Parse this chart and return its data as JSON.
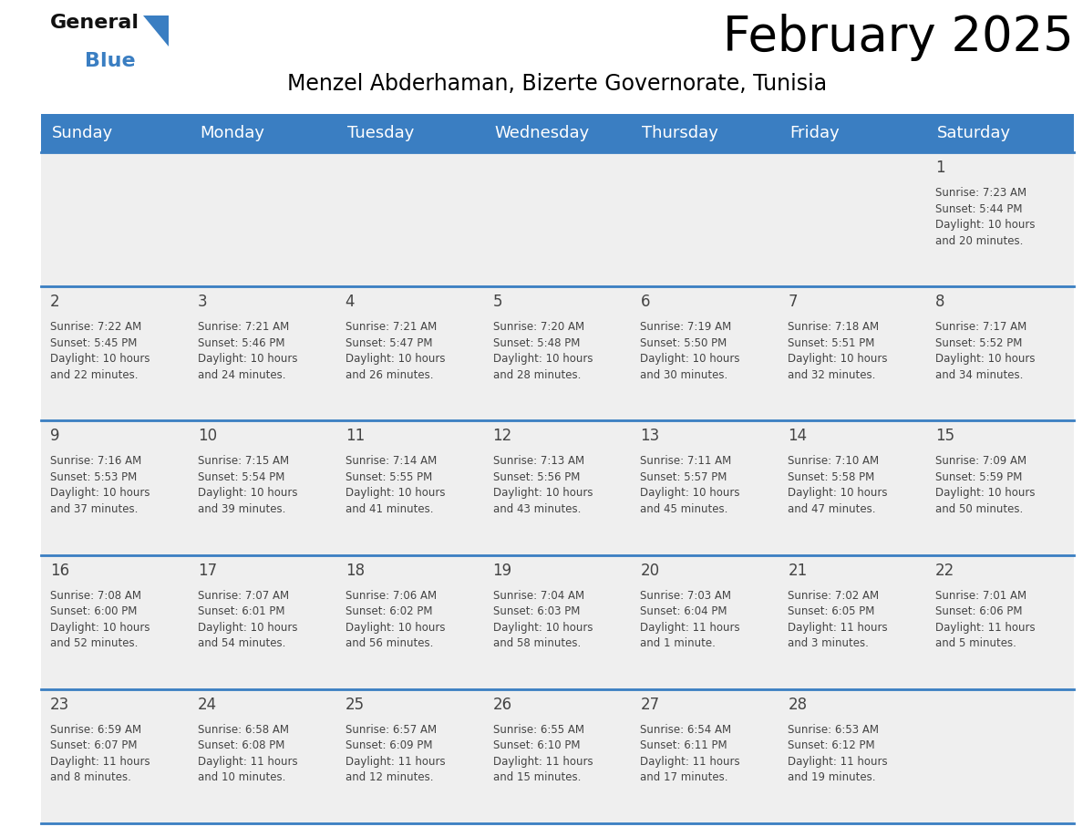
{
  "title": "February 2025",
  "subtitle": "Menzel Abderhaman, Bizerte Governorate, Tunisia",
  "header_color": "#3A7EC2",
  "header_text_color": "#FFFFFF",
  "cell_bg_light": "#EFEFEF",
  "cell_bg_white": "#FFFFFF",
  "cell_border_color": "#3A7EC2",
  "text_color": "#444444",
  "days_of_week": [
    "Sunday",
    "Monday",
    "Tuesday",
    "Wednesday",
    "Thursday",
    "Friday",
    "Saturday"
  ],
  "num_cols": 7,
  "num_rows": 5,
  "calendar_data": [
    [
      null,
      null,
      null,
      null,
      null,
      null,
      {
        "day": "1",
        "sunrise": "7:23 AM",
        "sunset": "5:44 PM",
        "daylight": "10 hours\nand 20 minutes."
      }
    ],
    [
      {
        "day": "2",
        "sunrise": "7:22 AM",
        "sunset": "5:45 PM",
        "daylight": "10 hours\nand 22 minutes."
      },
      {
        "day": "3",
        "sunrise": "7:21 AM",
        "sunset": "5:46 PM",
        "daylight": "10 hours\nand 24 minutes."
      },
      {
        "day": "4",
        "sunrise": "7:21 AM",
        "sunset": "5:47 PM",
        "daylight": "10 hours\nand 26 minutes."
      },
      {
        "day": "5",
        "sunrise": "7:20 AM",
        "sunset": "5:48 PM",
        "daylight": "10 hours\nand 28 minutes."
      },
      {
        "day": "6",
        "sunrise": "7:19 AM",
        "sunset": "5:50 PM",
        "daylight": "10 hours\nand 30 minutes."
      },
      {
        "day": "7",
        "sunrise": "7:18 AM",
        "sunset": "5:51 PM",
        "daylight": "10 hours\nand 32 minutes."
      },
      {
        "day": "8",
        "sunrise": "7:17 AM",
        "sunset": "5:52 PM",
        "daylight": "10 hours\nand 34 minutes."
      }
    ],
    [
      {
        "day": "9",
        "sunrise": "7:16 AM",
        "sunset": "5:53 PM",
        "daylight": "10 hours\nand 37 minutes."
      },
      {
        "day": "10",
        "sunrise": "7:15 AM",
        "sunset": "5:54 PM",
        "daylight": "10 hours\nand 39 minutes."
      },
      {
        "day": "11",
        "sunrise": "7:14 AM",
        "sunset": "5:55 PM",
        "daylight": "10 hours\nand 41 minutes."
      },
      {
        "day": "12",
        "sunrise": "7:13 AM",
        "sunset": "5:56 PM",
        "daylight": "10 hours\nand 43 minutes."
      },
      {
        "day": "13",
        "sunrise": "7:11 AM",
        "sunset": "5:57 PM",
        "daylight": "10 hours\nand 45 minutes."
      },
      {
        "day": "14",
        "sunrise": "7:10 AM",
        "sunset": "5:58 PM",
        "daylight": "10 hours\nand 47 minutes."
      },
      {
        "day": "15",
        "sunrise": "7:09 AM",
        "sunset": "5:59 PM",
        "daylight": "10 hours\nand 50 minutes."
      }
    ],
    [
      {
        "day": "16",
        "sunrise": "7:08 AM",
        "sunset": "6:00 PM",
        "daylight": "10 hours\nand 52 minutes."
      },
      {
        "day": "17",
        "sunrise": "7:07 AM",
        "sunset": "6:01 PM",
        "daylight": "10 hours\nand 54 minutes."
      },
      {
        "day": "18",
        "sunrise": "7:06 AM",
        "sunset": "6:02 PM",
        "daylight": "10 hours\nand 56 minutes."
      },
      {
        "day": "19",
        "sunrise": "7:04 AM",
        "sunset": "6:03 PM",
        "daylight": "10 hours\nand 58 minutes."
      },
      {
        "day": "20",
        "sunrise": "7:03 AM",
        "sunset": "6:04 PM",
        "daylight": "11 hours\nand 1 minute."
      },
      {
        "day": "21",
        "sunrise": "7:02 AM",
        "sunset": "6:05 PM",
        "daylight": "11 hours\nand 3 minutes."
      },
      {
        "day": "22",
        "sunrise": "7:01 AM",
        "sunset": "6:06 PM",
        "daylight": "11 hours\nand 5 minutes."
      }
    ],
    [
      {
        "day": "23",
        "sunrise": "6:59 AM",
        "sunset": "6:07 PM",
        "daylight": "11 hours\nand 8 minutes."
      },
      {
        "day": "24",
        "sunrise": "6:58 AM",
        "sunset": "6:08 PM",
        "daylight": "11 hours\nand 10 minutes."
      },
      {
        "day": "25",
        "sunrise": "6:57 AM",
        "sunset": "6:09 PM",
        "daylight": "11 hours\nand 12 minutes."
      },
      {
        "day": "26",
        "sunrise": "6:55 AM",
        "sunset": "6:10 PM",
        "daylight": "11 hours\nand 15 minutes."
      },
      {
        "day": "27",
        "sunrise": "6:54 AM",
        "sunset": "6:11 PM",
        "daylight": "11 hours\nand 17 minutes."
      },
      {
        "day": "28",
        "sunrise": "6:53 AM",
        "sunset": "6:12 PM",
        "daylight": "11 hours\nand 19 minutes."
      },
      null
    ]
  ],
  "logo_text_general": "General",
  "logo_text_blue": "Blue",
  "logo_color_general": "#111111",
  "logo_color_blue": "#3A7EC2",
  "title_fontsize": 38,
  "subtitle_fontsize": 17,
  "header_fontsize": 13,
  "day_num_fontsize": 12,
  "cell_text_fontsize": 8.5
}
